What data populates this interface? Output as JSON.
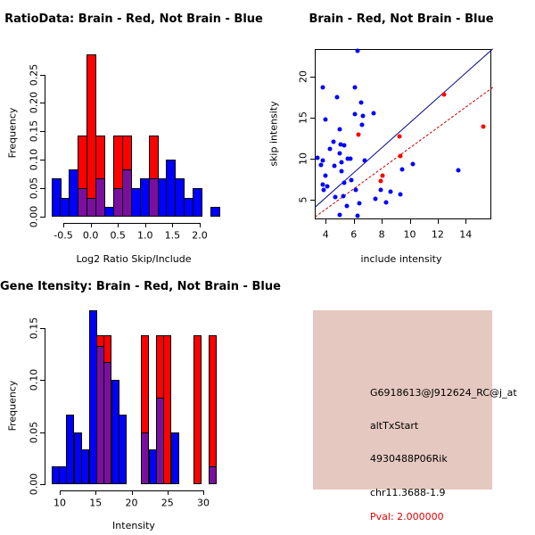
{
  "colors": {
    "brain": "#FF0000",
    "not_brain": "#0000FF",
    "overlap": "#7A0F9E",
    "brain_line": "#C00000",
    "not_brain_line": "#00008B",
    "info_bg": "#E5C8C0",
    "pval_text": "#E00000",
    "text": "#000000"
  },
  "chart_data": [
    {
      "type": "bar",
      "subtype": "overlaid-histogram",
      "title": "RatioData: Brain - Red, Not Brain - Blue",
      "xlabel": "Log2 Ratio Skip/Include",
      "ylabel": "Frequency",
      "legend": {
        "brain": "Red",
        "not_brain": "Blue"
      },
      "x_ticks": [
        -0.5,
        0.0,
        0.5,
        1.0,
        1.5,
        2.0
      ],
      "x_tick_labels": [
        "-0.5",
        "0.0",
        "0.5",
        "1.0",
        "1.5",
        "2.0"
      ],
      "y_ticks": [
        0.0,
        0.05,
        0.1,
        0.15,
        0.2,
        0.25
      ],
      "y_tick_labels": [
        "0.00",
        "0.05",
        "0.10",
        "0.15",
        "0.20",
        "0.25"
      ],
      "xlim": [
        -0.75,
        2.35
      ],
      "ylim": [
        0,
        0.29
      ],
      "bin_width": 0.162,
      "bins": [
        {
          "x": -0.72,
          "blue": 0.067
        },
        {
          "x": -0.558,
          "blue": 0.033
        },
        {
          "x": -0.396,
          "blue": 0.083
        },
        {
          "x": -0.234,
          "red": 0.143,
          "overlap": 0.05
        },
        {
          "x": -0.072,
          "red": 0.286,
          "overlap": 0.033
        },
        {
          "x": 0.09,
          "red": 0.143,
          "overlap": 0.067
        },
        {
          "x": 0.252,
          "blue": 0.017
        },
        {
          "x": 0.414,
          "red": 0.143,
          "overlap": 0.05
        },
        {
          "x": 0.576,
          "red": 0.143,
          "overlap": 0.083
        },
        {
          "x": 0.738,
          "blue": 0.05
        },
        {
          "x": 0.9,
          "blue": 0.067
        },
        {
          "x": 1.062,
          "red": 0.143,
          "overlap": 0.067
        },
        {
          "x": 1.224,
          "blue": 0.067
        },
        {
          "x": 1.386,
          "blue": 0.1
        },
        {
          "x": 1.548,
          "blue": 0.067
        },
        {
          "x": 1.71,
          "blue": 0.033
        },
        {
          "x": 1.872,
          "blue": 0.05
        },
        {
          "x": 2.196,
          "blue": 0.017
        }
      ]
    },
    {
      "type": "scatter",
      "title": "Brain - Red, Not Brain - Blue",
      "xlabel": "include intensity",
      "ylabel": "skip intensity",
      "x_ticks": [
        4,
        6,
        8,
        10,
        12,
        14
      ],
      "x_tick_labels": [
        "4",
        "6",
        "8",
        "10",
        "12",
        "14"
      ],
      "y_ticks": [
        5,
        10,
        15,
        20
      ],
      "y_tick_labels": [
        "5",
        "10",
        "15",
        "20"
      ],
      "xlim": [
        3.2,
        15.9
      ],
      "ylim": [
        2.8,
        23.5
      ],
      "series": [
        {
          "name": "not_brain",
          "color": "#0000FF",
          "points": [
            [
              6.25,
              23.2
            ],
            [
              3.8,
              18.7
            ],
            [
              6.1,
              18.7
            ],
            [
              4.8,
              17.5
            ],
            [
              6.55,
              16.8
            ],
            [
              6.1,
              15.4
            ],
            [
              6.65,
              15.2
            ],
            [
              7.4,
              15.5
            ],
            [
              3.95,
              14.8
            ],
            [
              6.6,
              14.1
            ],
            [
              5.0,
              13.6
            ],
            [
              4.55,
              12.1
            ],
            [
              5.05,
              11.7
            ],
            [
              5.35,
              11.6
            ],
            [
              4.3,
              11.2
            ],
            [
              5.0,
              10.7
            ],
            [
              3.4,
              10.1
            ],
            [
              3.8,
              9.8
            ],
            [
              5.15,
              9.6
            ],
            [
              5.6,
              10.0
            ],
            [
              5.75,
              10.05
            ],
            [
              3.65,
              9.2
            ],
            [
              4.6,
              9.1
            ],
            [
              5.1,
              8.5
            ],
            [
              4.0,
              7.95
            ],
            [
              3.8,
              6.9
            ],
            [
              4.1,
              6.6
            ],
            [
              5.35,
              7.1
            ],
            [
              5.8,
              7.4
            ],
            [
              3.85,
              6.2
            ],
            [
              6.15,
              6.2
            ],
            [
              4.7,
              5.35
            ],
            [
              5.25,
              5.4
            ],
            [
              6.4,
              4.6
            ],
            [
              5.5,
              4.2
            ],
            [
              5.0,
              3.2
            ],
            [
              6.3,
              3.0
            ],
            [
              6.8,
              9.8
            ],
            [
              7.9,
              6.2
            ],
            [
              8.6,
              6.0
            ],
            [
              9.3,
              5.6
            ],
            [
              7.55,
              5.1
            ],
            [
              8.3,
              4.7
            ],
            [
              9.45,
              8.65
            ],
            [
              10.2,
              9.35
            ],
            [
              13.5,
              8.6
            ]
          ]
        },
        {
          "name": "brain",
          "color": "#FF0000",
          "points": [
            [
              6.35,
              12.9
            ],
            [
              8.05,
              7.9
            ],
            [
              7.95,
              7.3
            ],
            [
              9.25,
              12.7
            ],
            [
              9.35,
              10.3
            ],
            [
              12.45,
              17.85
            ],
            [
              15.25,
              13.95
            ]
          ]
        }
      ],
      "lines": [
        {
          "name": "not_brain_fit",
          "color": "#00008B",
          "style": "solid",
          "from": [
            3.2,
            4.1
          ],
          "to": [
            15.9,
            23.4
          ]
        },
        {
          "name": "brain_fit",
          "color": "#C00000",
          "style": "dashed",
          "from": [
            3.2,
            2.9
          ],
          "to": [
            15.9,
            18.7
          ]
        }
      ]
    },
    {
      "type": "bar",
      "subtype": "overlaid-histogram",
      "title": "Gene Itensity: Brain - Red, Not Brain - Blue",
      "xlabel": "Intensity",
      "ylabel": "Frequency",
      "legend": {
        "brain": "Red",
        "not_brain": "Blue"
      },
      "x_ticks": [
        10,
        15,
        20,
        25,
        30
      ],
      "x_tick_labels": [
        "10",
        "15",
        "20",
        "25",
        "30"
      ],
      "y_ticks": [
        0.0,
        0.05,
        0.1,
        0.15
      ],
      "y_tick_labels": [
        "0.00",
        "0.05",
        "0.10",
        "0.15"
      ],
      "xlim": [
        8.5,
        32.8
      ],
      "ylim": [
        0,
        0.17
      ],
      "bin_width": 1.04,
      "bins": [
        {
          "x": 8.85,
          "blue": 0.017
        },
        {
          "x": 9.89,
          "blue": 0.017
        },
        {
          "x": 10.93,
          "blue": 0.067
        },
        {
          "x": 11.97,
          "blue": 0.05
        },
        {
          "x": 13.01,
          "blue": 0.033
        },
        {
          "x": 14.05,
          "blue": 0.167
        },
        {
          "x": 15.09,
          "red": 0.143,
          "overlap": 0.133
        },
        {
          "x": 16.13,
          "red": 0.143,
          "overlap": 0.117
        },
        {
          "x": 17.17,
          "blue": 0.1
        },
        {
          "x": 18.21,
          "blue": 0.067
        },
        {
          "x": 21.33,
          "red": 0.143,
          "overlap": 0.05
        },
        {
          "x": 22.37,
          "blue": 0.033
        },
        {
          "x": 23.41,
          "red": 0.143,
          "overlap": 0.083
        },
        {
          "x": 24.45,
          "red": 0.143
        },
        {
          "x": 25.49,
          "blue": 0.05
        },
        {
          "x": 28.61,
          "red": 0.143
        },
        {
          "x": 30.69,
          "red": 0.143,
          "overlap": 0.017
        }
      ]
    }
  ],
  "info_panel": {
    "probe_id": "G6918613@J912624_RC@j_at",
    "event_type": "altTxStart",
    "gene_symbol": "4930488P06Rik",
    "location": "chr11.3688-1.9",
    "pval": "Pval: 2.000000"
  }
}
